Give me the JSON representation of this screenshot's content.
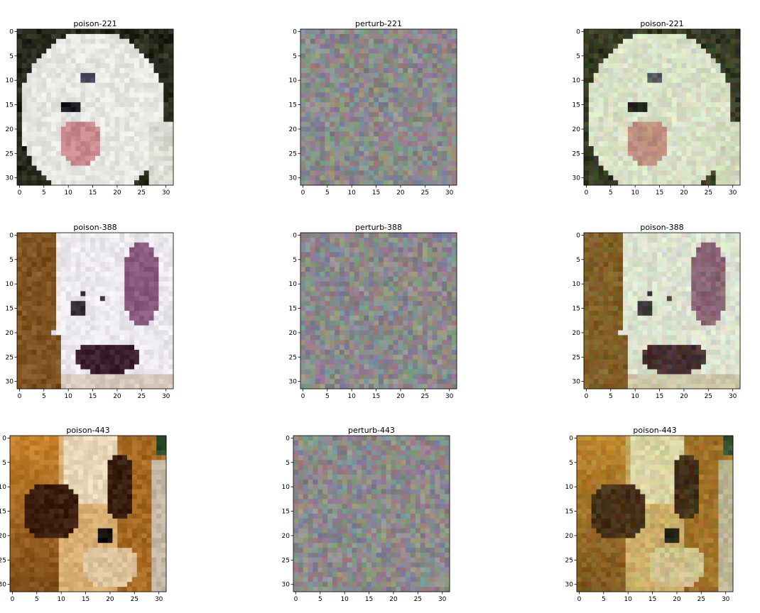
{
  "figure": {
    "panels": [
      {
        "title": "poison-221",
        "kind": "image-fluffy-white-dog"
      },
      {
        "title": "perturb-221",
        "kind": "noise-gray"
      },
      {
        "title": "poison-221",
        "kind": "image-fluffy-white-dog-perturbed"
      },
      {
        "title": "poison-388",
        "kind": "image-white-dog-purple-ear"
      },
      {
        "title": "perturb-388",
        "kind": "noise-gray"
      },
      {
        "title": "poison-388",
        "kind": "image-white-dog-purple-ear-perturbed"
      },
      {
        "title": "poison-443",
        "kind": "image-brown-white-dog"
      },
      {
        "title": "perturb-443",
        "kind": "noise-gray"
      },
      {
        "title": "poison-443",
        "kind": "image-brown-white-dog-perturbed"
      }
    ],
    "x_ticks": [
      "0",
      "5",
      "10",
      "15",
      "20",
      "25",
      "30"
    ],
    "y_ticks": [
      "0",
      "5",
      "10",
      "15",
      "20",
      "25",
      "30"
    ],
    "x_tick_values": [
      0,
      5,
      10,
      15,
      20,
      25,
      30
    ],
    "y_tick_values": [
      0,
      5,
      10,
      15,
      20,
      25,
      30
    ],
    "image_resolution": 32,
    "colors": {
      "white_dog": "#e6e6e2",
      "pink_tongue": "#c98a8e",
      "dark_bg": "#1a1a14",
      "purple_ear": "#8a5a7e",
      "brown_fur": "#7a4a18",
      "orange_fur": "#c8822a",
      "cream_face": "#e8d8b8",
      "noise_base": "#8a8a8a"
    }
  }
}
